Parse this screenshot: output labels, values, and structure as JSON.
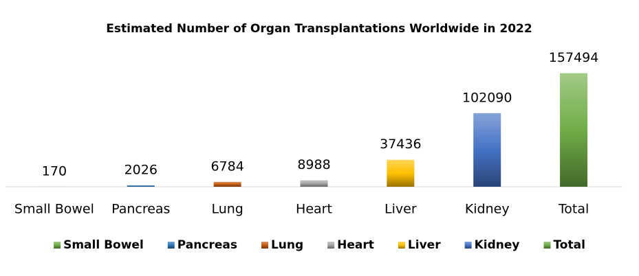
{
  "chart_data": {
    "type": "bar",
    "title": "Estimated Number of Organ Transplantations Worldwide in 2022",
    "categories": [
      "Small Bowel",
      "Pancreas",
      "Lung",
      "Heart",
      "Liver",
      "Kidney",
      "Total"
    ],
    "series": [
      {
        "name": "Small Bowel",
        "color": "#70ad47",
        "values": [
          170,
          null,
          null,
          null,
          null,
          null,
          null
        ]
      },
      {
        "name": "Pancreas",
        "color": "#2e75b6",
        "values": [
          null,
          2026,
          null,
          null,
          null,
          null,
          null
        ]
      },
      {
        "name": "Lung",
        "color": "#c55a11",
        "values": [
          null,
          null,
          6784,
          null,
          null,
          null,
          null
        ]
      },
      {
        "name": "Heart",
        "color": "#a5a5a5",
        "values": [
          null,
          null,
          null,
          8988,
          null,
          null,
          null
        ]
      },
      {
        "name": "Liver",
        "color": "#ffc000",
        "values": [
          null,
          null,
          null,
          null,
          37436,
          null,
          null
        ]
      },
      {
        "name": "Kidney",
        "color": "#4472c4",
        "values": [
          null,
          null,
          null,
          null,
          null,
          102090,
          null
        ]
      },
      {
        "name": "Total",
        "color": "#70ad47",
        "values": [
          null,
          null,
          null,
          null,
          null,
          null,
          157494
        ]
      }
    ],
    "ylim": [
      0,
      180000
    ],
    "legend": "bottom"
  }
}
